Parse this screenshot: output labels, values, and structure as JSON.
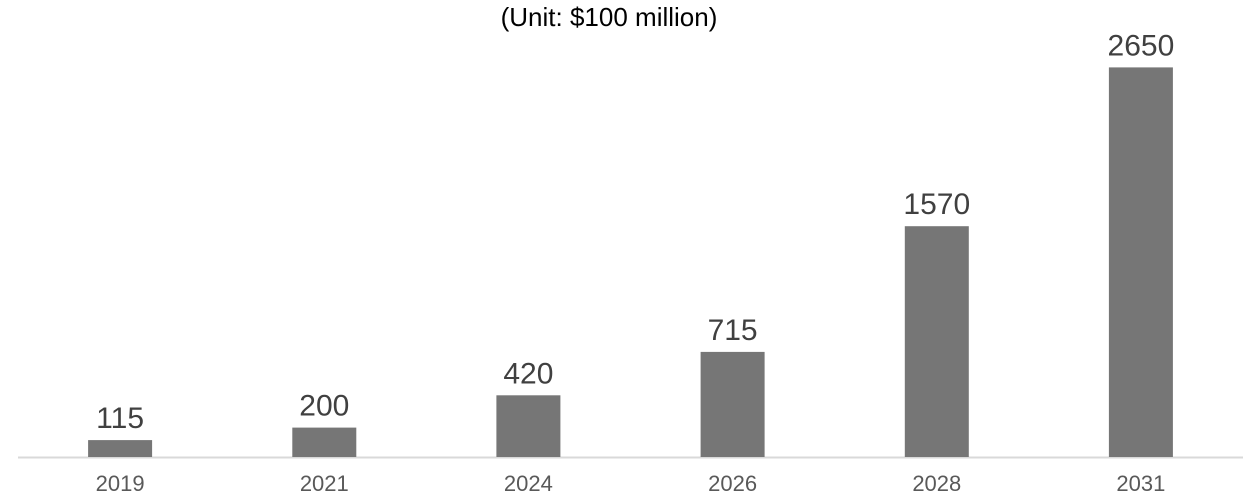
{
  "chart_data": {
    "type": "bar",
    "title": "",
    "subtitle": "(Unit: $100 million)",
    "xlabel": "",
    "ylabel": "",
    "categories": [
      "2019",
      "2021",
      "2024",
      "2026",
      "2028",
      "2031"
    ],
    "values": [
      115,
      200,
      420,
      715,
      1570,
      2650
    ],
    "data_labels": [
      "115",
      "200",
      "420",
      "715",
      "1570",
      "2650"
    ],
    "ylim": [
      0,
      2850
    ],
    "grid": false,
    "legend": "none",
    "colors": {
      "bar": "#767676",
      "axis": "#d9d9d9",
      "data_label": "#404040",
      "tick_label": "#595959",
      "subtitle": "#000000"
    }
  }
}
